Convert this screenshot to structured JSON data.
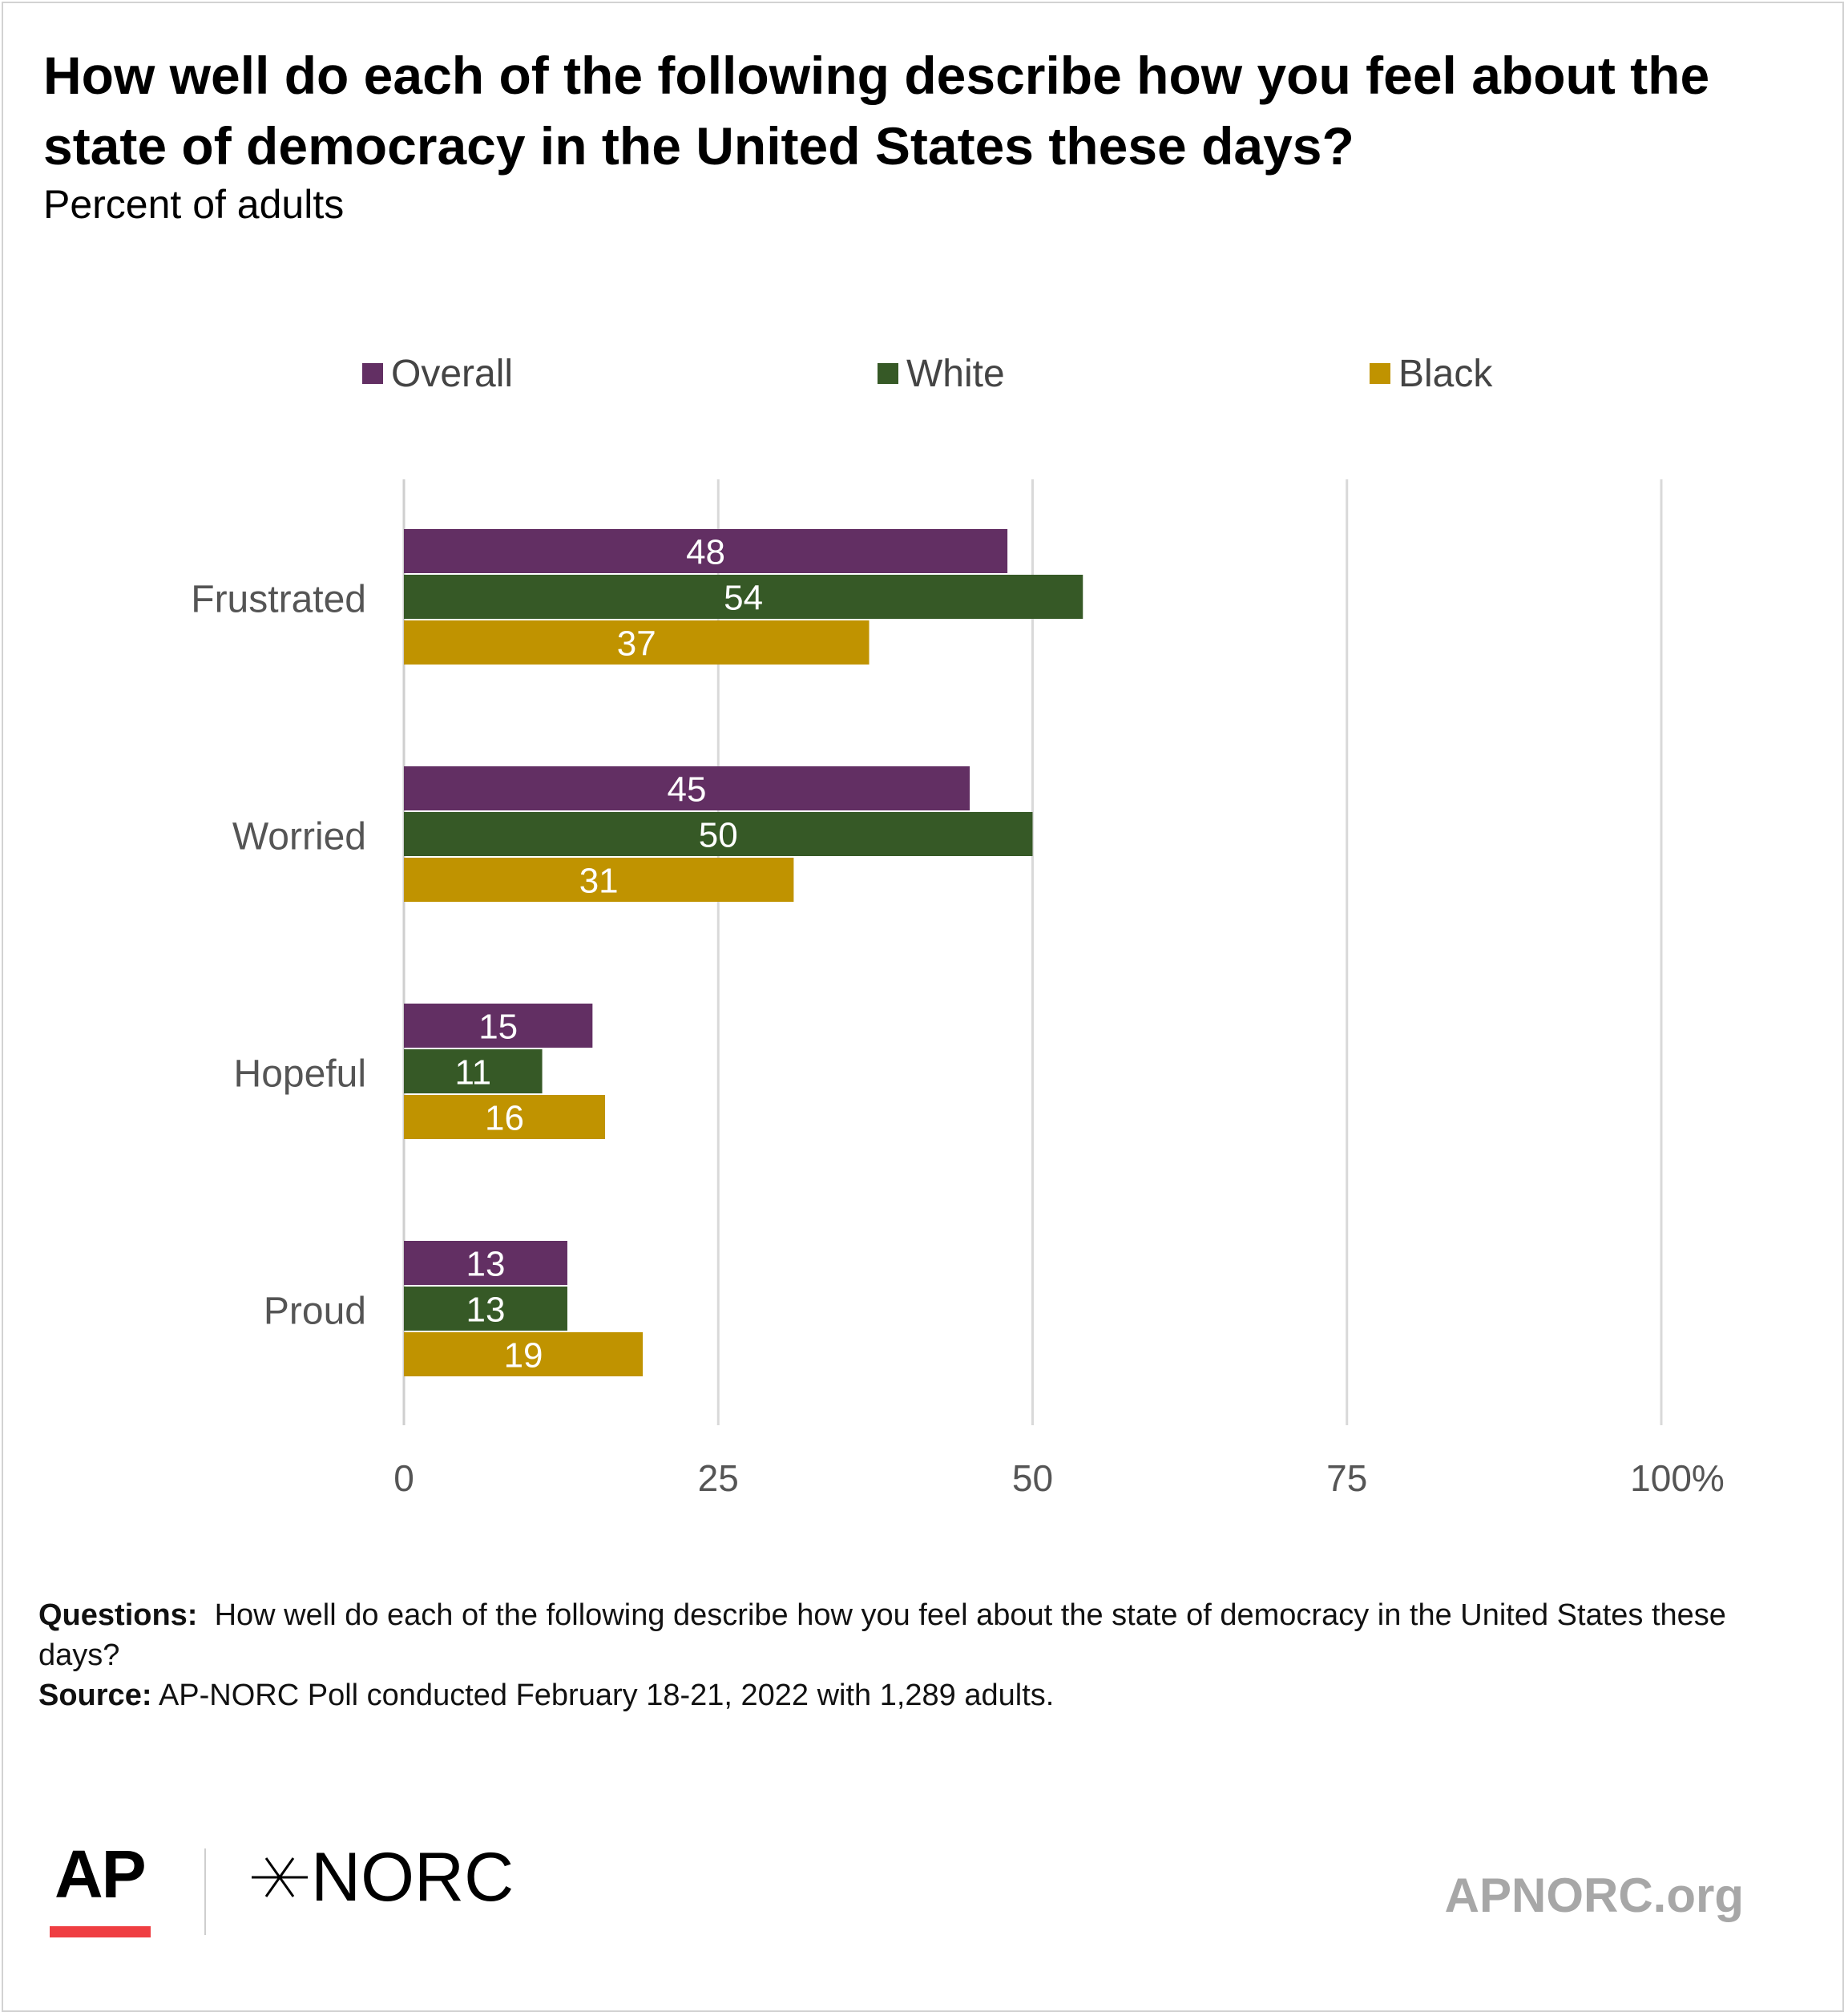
{
  "title": "How well do each of the following describe how you feel about the state of democracy in the United States these days?",
  "subtitle": "Percent of adults",
  "colors": {
    "overall": "#622f63",
    "white": "#365926",
    "black": "#c09300",
    "grid": "#d9d9d9",
    "axis_text": "#555555"
  },
  "legend": [
    {
      "label": "Overall",
      "color": "#622f63"
    },
    {
      "label": "White",
      "color": "#365926"
    },
    {
      "label": "Black",
      "color": "#c09300"
    }
  ],
  "chart_data": {
    "type": "bar",
    "orientation": "horizontal",
    "categories": [
      "Frustrated",
      "Worried",
      "Hopeful",
      "Proud"
    ],
    "series": [
      {
        "name": "Overall",
        "color": "#622f63",
        "values": [
          48,
          45,
          15,
          13
        ]
      },
      {
        "name": "White",
        "color": "#365926",
        "values": [
          54,
          50,
          11,
          13
        ]
      },
      {
        "name": "Black",
        "color": "#c09300",
        "values": [
          37,
          31,
          16,
          19
        ]
      }
    ],
    "xlim": [
      0,
      100
    ],
    "xticks": [
      0,
      25,
      50,
      75,
      100
    ],
    "xtick_labels": [
      "0",
      "25",
      "50",
      "75",
      "100%"
    ],
    "grid": true,
    "legend_position": "top",
    "data_labels": true
  },
  "notes": {
    "questions_label": "Questions:",
    "questions_text": "How well do each of the following describe how you feel about the state of democracy in the United States these days?",
    "source_label": "Source:",
    "source_text": "AP-NORC Poll conducted February 18-21, 2022 with 1,289 adults."
  },
  "logos": {
    "ap": "AP",
    "norc": "NORC",
    "site": "APNORC.org"
  }
}
